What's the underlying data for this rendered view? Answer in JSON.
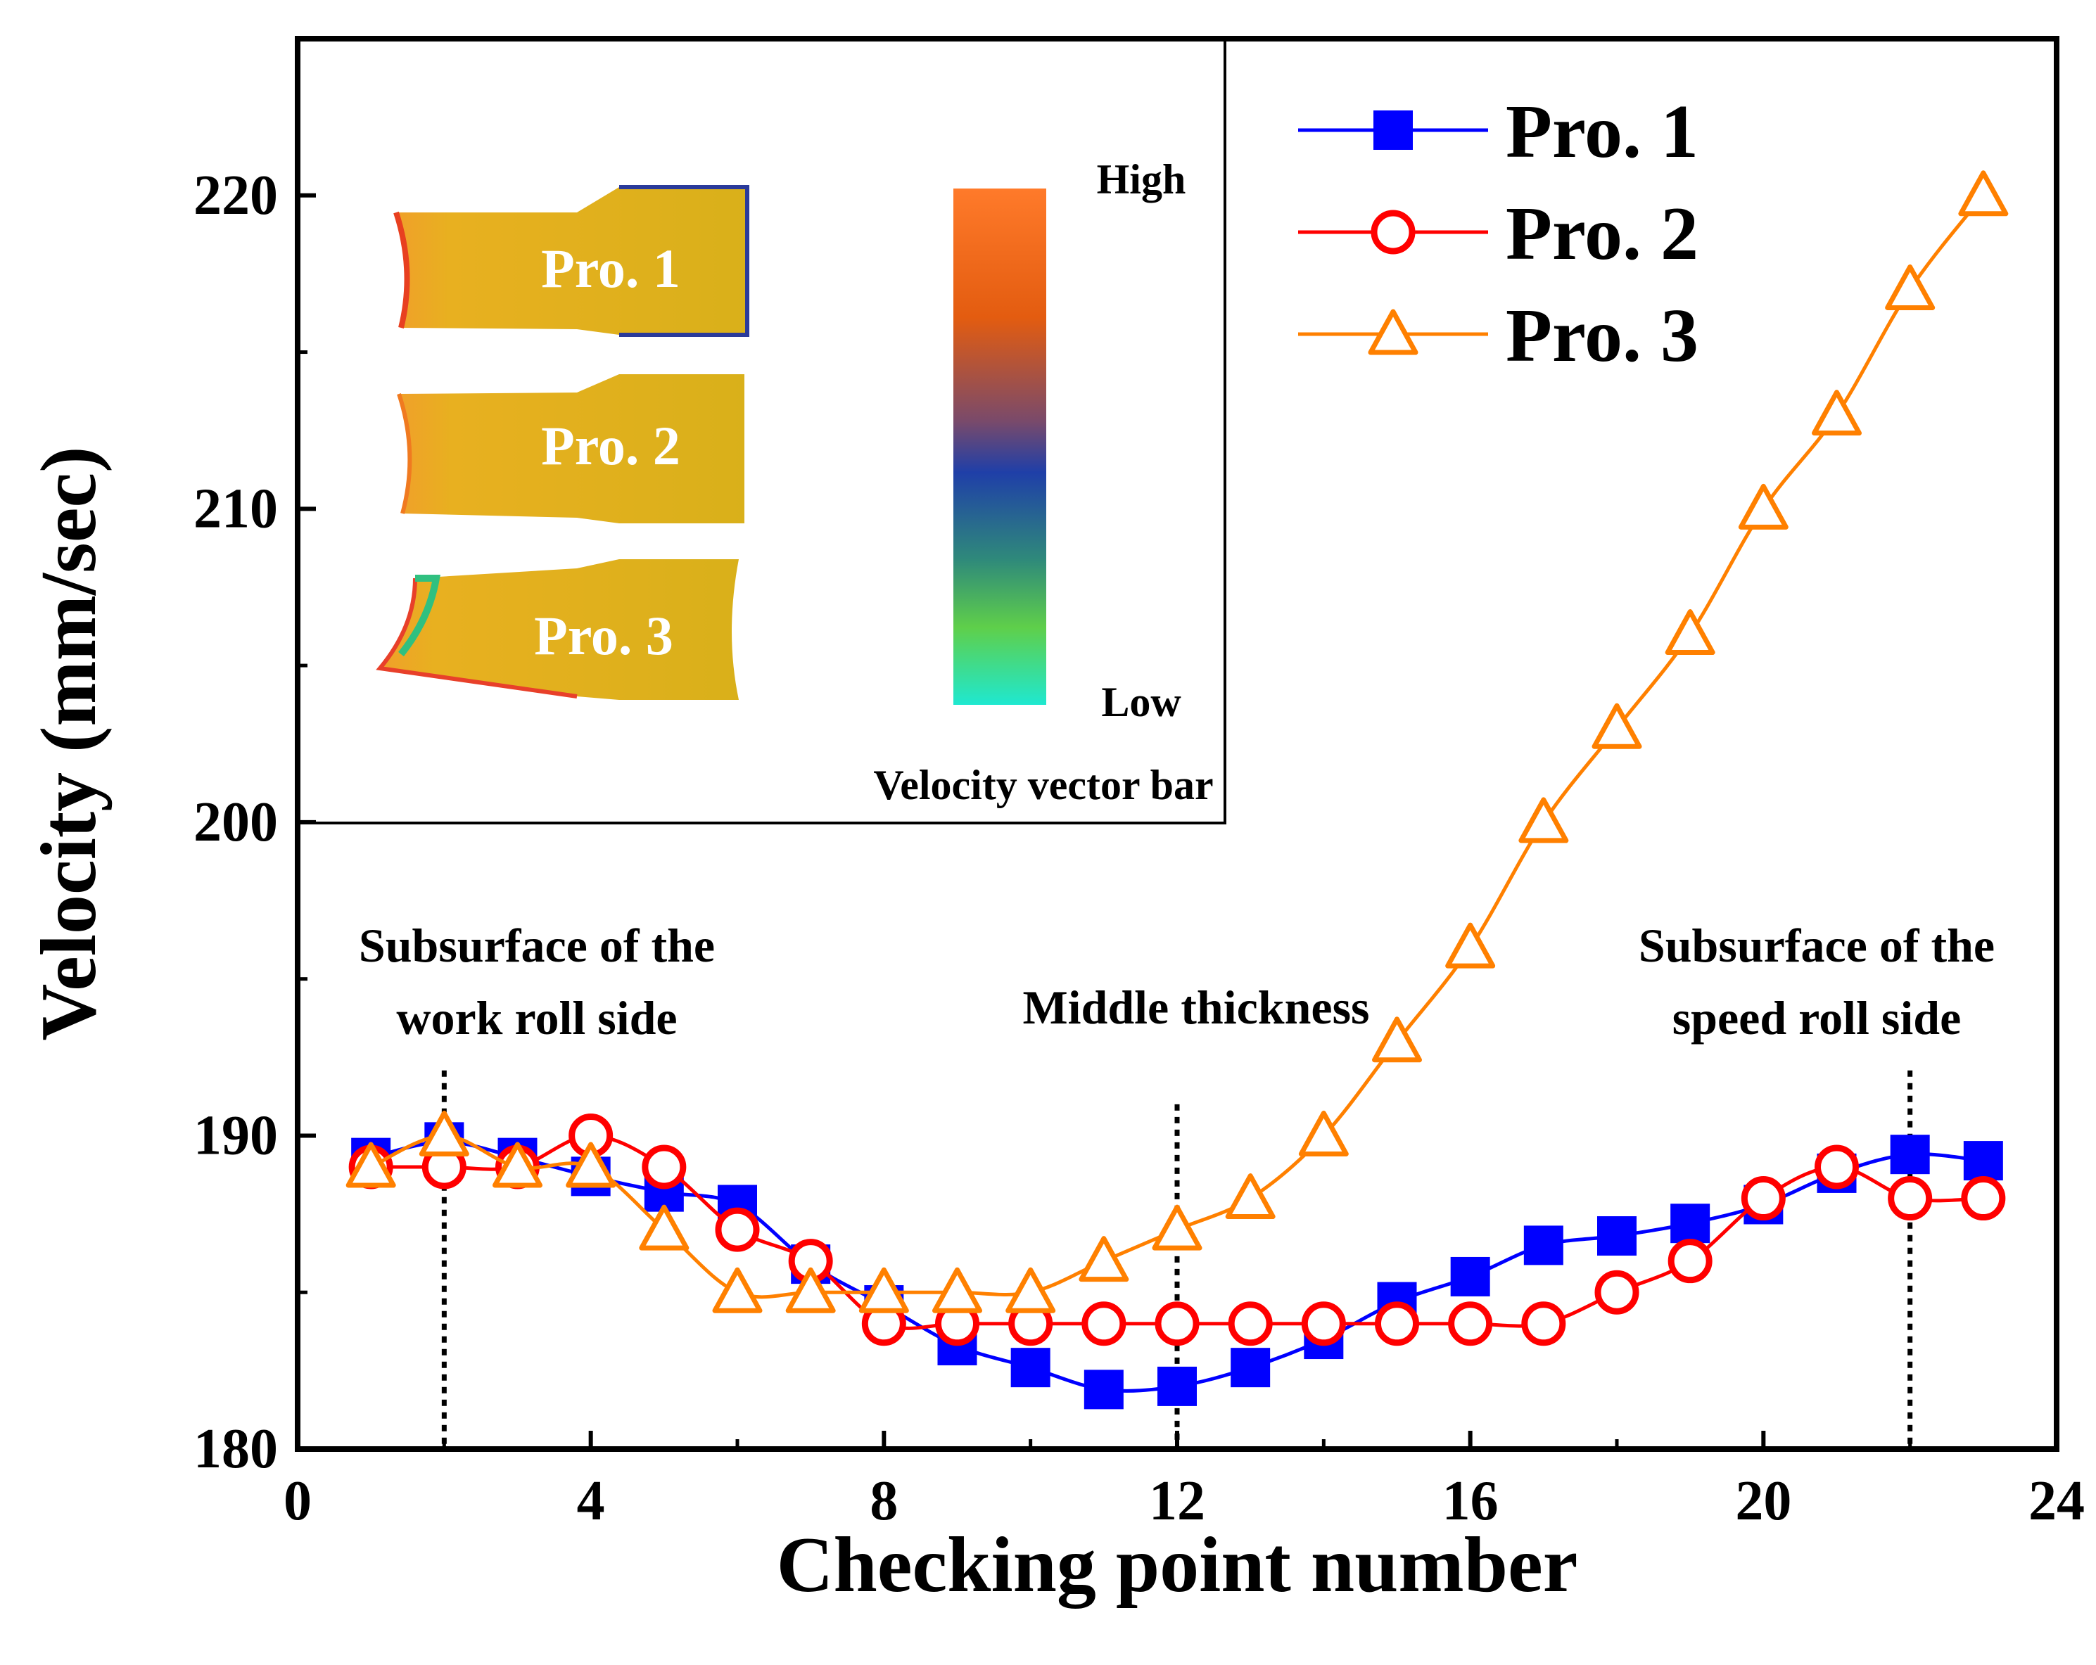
{
  "chart_data": {
    "type": "line",
    "xlabel": "Checking point number",
    "ylabel": "Velocity (mm/sec)",
    "xlim": [
      0,
      24
    ],
    "ylim": [
      180,
      225
    ],
    "x_ticks": [
      0,
      4,
      8,
      12,
      16,
      20,
      24
    ],
    "y_ticks": [
      180,
      190,
      200,
      210,
      220
    ],
    "x": [
      1,
      2,
      3,
      4,
      5,
      6,
      7,
      8,
      9,
      10,
      11,
      12,
      13,
      14,
      15,
      16,
      17,
      18,
      19,
      20,
      21,
      22,
      23
    ],
    "series": [
      {
        "name": "Pro. 1",
        "color": "#0000ff",
        "marker": "square",
        "values": [
          189.3,
          189.8,
          189.3,
          188.7,
          188.2,
          187.8,
          185.9,
          184.6,
          183.3,
          182.6,
          181.9,
          182.0,
          182.6,
          183.5,
          184.7,
          185.5,
          186.5,
          186.8,
          187.2,
          187.8,
          188.8,
          189.4,
          189.2
        ]
      },
      {
        "name": "Pro. 2",
        "color": "#ff0000",
        "marker": "circle",
        "values": [
          189.0,
          189.0,
          189.0,
          190.0,
          189.0,
          187.0,
          186.0,
          184.0,
          184.0,
          184.0,
          184.0,
          184.0,
          184.0,
          184.0,
          184.0,
          184.0,
          184.0,
          185.0,
          186.0,
          188.0,
          189.0,
          188.0,
          188.0
        ]
      },
      {
        "name": "Pro. 3",
        "color": "#ff8000",
        "marker": "triangle",
        "values": [
          189.0,
          190.0,
          189.0,
          189.0,
          187.0,
          185.0,
          185.0,
          185.0,
          185.0,
          185.0,
          186.0,
          187.0,
          188.0,
          190.0,
          193.0,
          196.0,
          200.0,
          203.0,
          206.0,
          210.0,
          213.0,
          217.0,
          220.0
        ]
      }
    ],
    "legend_position": "top-right",
    "reference_lines": [
      {
        "x": 2,
        "label_lines": [
          "Subsurface of the",
          "work roll side"
        ]
      },
      {
        "x": 12,
        "label_lines": [
          "Middle thickness"
        ]
      },
      {
        "x": 22,
        "label_lines": [
          "Subsurface of the",
          "speed roll side"
        ]
      }
    ]
  },
  "inset": {
    "strip_labels": [
      "Pro. 1",
      "Pro. 2",
      "Pro. 3"
    ],
    "colorbar_high": "High",
    "colorbar_low": "Low",
    "colorbar_title": "Velocity vector bar",
    "colorbar_stops": [
      "#ff7a2a",
      "#e35c10",
      "#1f3fa8",
      "#2f8a7a",
      "#5fcf4a",
      "#1fe8d0"
    ]
  }
}
